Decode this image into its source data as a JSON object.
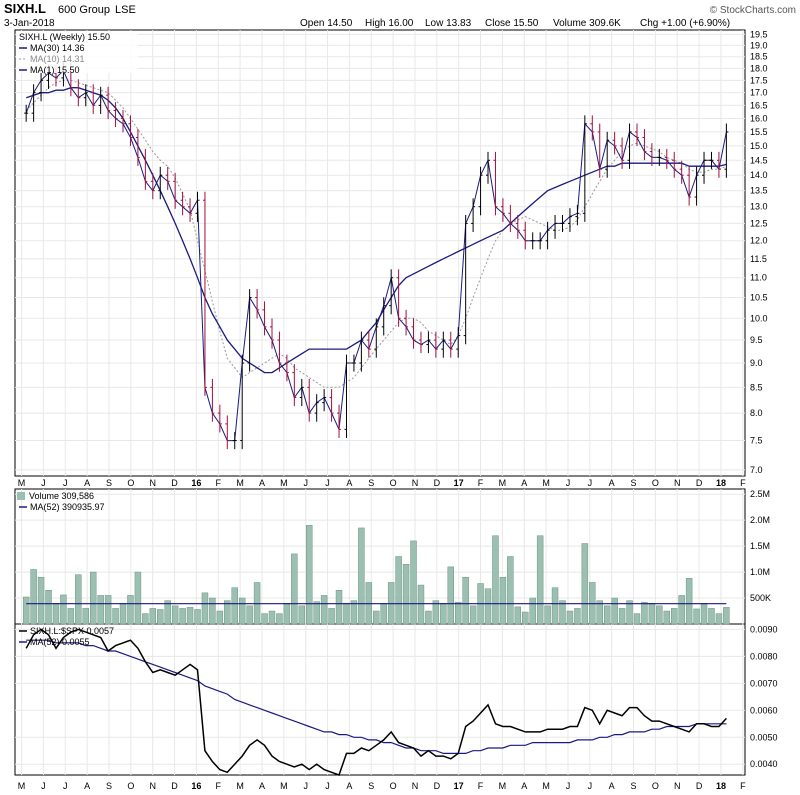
{
  "header": {
    "ticker": "SIXH.L",
    "company": "600 Group",
    "exchange": "LSE",
    "date": "3-Jan-2018",
    "open": "Open 14.50",
    "high": "High 16.00",
    "low": "Low 13.83",
    "close": "Close 15.50",
    "volume": "Volume 309.6K",
    "change": "Chg +1.00 (+6.90%)",
    "watermark": "© StockCharts.com"
  },
  "legends": {
    "price": "SIXH.L (Weekly) 15.50",
    "ma30": "MA(30) 14.36",
    "ma10": "MA(10) 14.31",
    "ma1": "MA(1) 15.50",
    "volume": "Volume 309,586",
    "vol_ma": "MA(52) 390935.97",
    "ratio": "SIXH.L:$SPX 0.0057",
    "ratio_ma": "MA(52) 0.0055"
  },
  "colors": {
    "up": "#000000",
    "down": "#a0103c",
    "ma30": "#1a1a80",
    "ma10": "#9a9a9a",
    "ma1": "#1a1a80",
    "volume_bar": "#9bbfb0",
    "grid": "#e8e8e8"
  },
  "chart_data": [
    {
      "type": "line",
      "name": "price",
      "x_labels": [
        "M",
        "J",
        "J",
        "A",
        "S",
        "O",
        "N",
        "D",
        "16",
        "F",
        "M",
        "A",
        "M",
        "J",
        "J",
        "A",
        "S",
        "O",
        "N",
        "D",
        "17",
        "F",
        "M",
        "A",
        "M",
        "J",
        "J",
        "A",
        "S",
        "O",
        "N",
        "D",
        "18",
        "F"
      ],
      "y_ticks": [
        7.0,
        7.5,
        8.0,
        8.5,
        9.0,
        9.5,
        10.0,
        10.5,
        11.0,
        11.5,
        12.0,
        12.5,
        13.0,
        13.5,
        14.0,
        14.5,
        15.0,
        15.5,
        16.0,
        16.5,
        17.0,
        17.5,
        18.0,
        18.5,
        19.0,
        19.5
      ],
      "y_scale": "log",
      "ylim": [
        6.9,
        19.7
      ],
      "close": [
        16.2,
        17.0,
        17.5,
        17.8,
        17.6,
        17.9,
        17.2,
        16.8,
        17.0,
        16.5,
        16.9,
        16.3,
        16.0,
        15.8,
        15.3,
        14.6,
        13.8,
        13.5,
        14.0,
        13.8,
        13.2,
        13.0,
        12.8,
        13.2,
        8.5,
        8.0,
        7.8,
        7.5,
        7.5,
        9.0,
        10.5,
        10.2,
        9.8,
        9.5,
        9.0,
        8.8,
        8.3,
        8.5,
        8.0,
        8.2,
        8.3,
        8.0,
        7.7,
        9.0,
        9.0,
        9.5,
        9.3,
        9.8,
        10.3,
        11.0,
        10.0,
        9.8,
        9.5,
        9.4,
        9.5,
        9.3,
        9.5,
        9.3,
        9.6,
        12.5,
        13.0,
        14.0,
        14.5,
        13.0,
        12.8,
        12.5,
        12.3,
        12.0,
        12.0,
        12.0,
        12.3,
        12.5,
        12.5,
        12.7,
        12.8,
        15.8,
        15.5,
        14.2,
        15.2,
        15.0,
        14.5,
        15.5,
        15.3,
        14.8,
        14.6,
        14.6,
        14.5,
        14.2,
        14.0,
        13.3,
        14.0,
        14.5,
        14.5,
        14.2,
        15.5
      ],
      "ma10": [
        16.3,
        16.6,
        16.9,
        17.2,
        17.4,
        17.5,
        17.5,
        17.4,
        17.3,
        17.2,
        17.1,
        17.0,
        16.7,
        16.4,
        16.0,
        15.6,
        15.2,
        14.8,
        14.5,
        14.3,
        13.9,
        13.4,
        12.9,
        12.0,
        11.2,
        10.4,
        9.7,
        9.1,
        8.9,
        8.7,
        8.8,
        8.9,
        9.0,
        9.1,
        9.2,
        9.1,
        8.9,
        8.8,
        8.7,
        8.6,
        8.5,
        8.5,
        8.5,
        8.6,
        8.7,
        8.9,
        9.1,
        9.3,
        9.5,
        9.7,
        9.9,
        10.0,
        10.0,
        9.9,
        9.7,
        9.6,
        9.5,
        9.4,
        9.6,
        10.0,
        10.5,
        11.0,
        11.5,
        12.0,
        12.3,
        12.5,
        12.6,
        12.7,
        12.6,
        12.5,
        12.4,
        12.3,
        12.3,
        12.4,
        12.6,
        13.0,
        13.4,
        13.8,
        14.2,
        14.5,
        14.8,
        15.0,
        15.1,
        15.0,
        14.9,
        14.8,
        14.6,
        14.5,
        14.4,
        14.2,
        14.1,
        14.1,
        14.2,
        14.2,
        14.3
      ],
      "ma30": [
        16.8,
        16.9,
        17.0,
        17.0,
        17.1,
        17.1,
        17.2,
        17.2,
        17.1,
        17.0,
        16.9,
        16.7,
        16.4,
        16.0,
        15.5,
        15.0,
        14.5,
        14.0,
        13.5,
        13.0,
        12.5,
        12.0,
        11.5,
        11.0,
        10.5,
        10.1,
        9.8,
        9.5,
        9.3,
        9.1,
        9.0,
        8.9,
        8.8,
        8.8,
        8.9,
        9.0,
        9.1,
        9.2,
        9.3,
        9.3,
        9.3,
        9.3,
        9.3,
        9.3,
        9.4,
        9.5,
        9.7,
        9.9,
        10.2,
        10.5,
        10.8,
        11.0,
        11.1,
        11.2,
        11.3,
        11.4,
        11.5,
        11.6,
        11.7,
        11.8,
        11.9,
        12.0,
        12.1,
        12.2,
        12.3,
        12.5,
        12.7,
        12.9,
        13.1,
        13.3,
        13.5,
        13.6,
        13.7,
        13.8,
        13.9,
        14.0,
        14.1,
        14.2,
        14.3,
        14.3,
        14.4,
        14.4,
        14.4,
        14.4,
        14.4,
        14.4,
        14.4,
        14.4,
        14.4,
        14.3,
        14.3,
        14.3,
        14.3,
        14.3,
        14.36
      ]
    },
    {
      "type": "bar",
      "name": "volume",
      "y_ticks": [
        "500K",
        "1.0M",
        "1.5M",
        "2.0M",
        "2.5M"
      ],
      "ylim": [
        0,
        2600000
      ],
      "values": [
        520000,
        1050000,
        900000,
        650000,
        400000,
        560000,
        300000,
        950000,
        300000,
        1000000,
        550000,
        550000,
        300000,
        400000,
        550000,
        1000000,
        200000,
        300000,
        280000,
        450000,
        350000,
        300000,
        320000,
        280000,
        600000,
        500000,
        250000,
        450000,
        700000,
        500000,
        350000,
        800000,
        200000,
        250000,
        200000,
        400000,
        1350000,
        350000,
        1900000,
        430000,
        550000,
        300000,
        650000,
        400000,
        450000,
        1850000,
        800000,
        250000,
        400000,
        800000,
        1300000,
        1150000,
        1600000,
        750000,
        250000,
        450000,
        400000,
        1100000,
        420000,
        900000,
        350000,
        780000,
        680000,
        1700000,
        900000,
        1300000,
        330000,
        230000,
        500000,
        1700000,
        350000,
        700000,
        450000,
        250000,
        300000,
        1550000,
        800000,
        450000,
        350000,
        500000,
        300000,
        450000,
        200000,
        420000,
        400000,
        350000,
        250000,
        300000,
        550000,
        880000,
        290000,
        400000,
        300000,
        200000,
        320000
      ],
      "ma_value": 390935.97
    },
    {
      "type": "line",
      "name": "ratio",
      "y_ticks": [
        0.004,
        0.005,
        0.006,
        0.007,
        0.008,
        0.009
      ],
      "ylim": [
        0.0036,
        0.0092
      ],
      "values": [
        0.0083,
        0.0088,
        0.009,
        0.0088,
        0.0083,
        0.0087,
        0.0089,
        0.009,
        0.0089,
        0.0088,
        0.0087,
        0.0082,
        0.0084,
        0.0085,
        0.0086,
        0.0083,
        0.0078,
        0.0074,
        0.0075,
        0.0074,
        0.0073,
        0.0075,
        0.0077,
        0.0075,
        0.0045,
        0.0041,
        0.0038,
        0.0037,
        0.004,
        0.0043,
        0.0047,
        0.0049,
        0.0047,
        0.0043,
        0.0041,
        0.004,
        0.0039,
        0.004,
        0.0038,
        0.004,
        0.0038,
        0.0037,
        0.0036,
        0.0044,
        0.0044,
        0.0046,
        0.0045,
        0.0047,
        0.0049,
        0.0052,
        0.0048,
        0.0047,
        0.0046,
        0.0043,
        0.0045,
        0.0043,
        0.0043,
        0.0042,
        0.0044,
        0.0054,
        0.0056,
        0.0059,
        0.0062,
        0.0055,
        0.0054,
        0.0054,
        0.0053,
        0.0052,
        0.0052,
        0.0052,
        0.0053,
        0.0053,
        0.0053,
        0.0054,
        0.0054,
        0.0061,
        0.006,
        0.0055,
        0.006,
        0.0059,
        0.0058,
        0.0061,
        0.0061,
        0.0058,
        0.0056,
        0.0056,
        0.0055,
        0.0054,
        0.0053,
        0.0052,
        0.0055,
        0.0055,
        0.0054,
        0.0054,
        0.0057
      ],
      "ma": [
        0.0086,
        0.0086,
        0.0086,
        0.0086,
        0.0085,
        0.0085,
        0.0085,
        0.0085,
        0.0084,
        0.0084,
        0.0083,
        0.0082,
        0.0082,
        0.0081,
        0.008,
        0.0079,
        0.0078,
        0.0077,
        0.0076,
        0.0075,
        0.0074,
        0.0073,
        0.0072,
        0.0071,
        0.0069,
        0.0068,
        0.0067,
        0.0066,
        0.0064,
        0.0063,
        0.0062,
        0.0061,
        0.006,
        0.0059,
        0.0058,
        0.0057,
        0.0056,
        0.0055,
        0.0054,
        0.0053,
        0.0052,
        0.0052,
        0.0051,
        0.0051,
        0.005,
        0.005,
        0.0049,
        0.0049,
        0.0048,
        0.0048,
        0.0047,
        0.0046,
        0.0046,
        0.0045,
        0.0045,
        0.0045,
        0.0044,
        0.0044,
        0.0044,
        0.0044,
        0.0045,
        0.0045,
        0.0046,
        0.0046,
        0.0046,
        0.0047,
        0.0047,
        0.0047,
        0.0048,
        0.0048,
        0.0048,
        0.0048,
        0.0048,
        0.0048,
        0.0049,
        0.0049,
        0.0049,
        0.005,
        0.005,
        0.0051,
        0.0051,
        0.0052,
        0.0052,
        0.0052,
        0.0053,
        0.0053,
        0.0054,
        0.0054,
        0.0054,
        0.0054,
        0.0055,
        0.0055,
        0.0055,
        0.0055,
        0.0055
      ]
    }
  ]
}
